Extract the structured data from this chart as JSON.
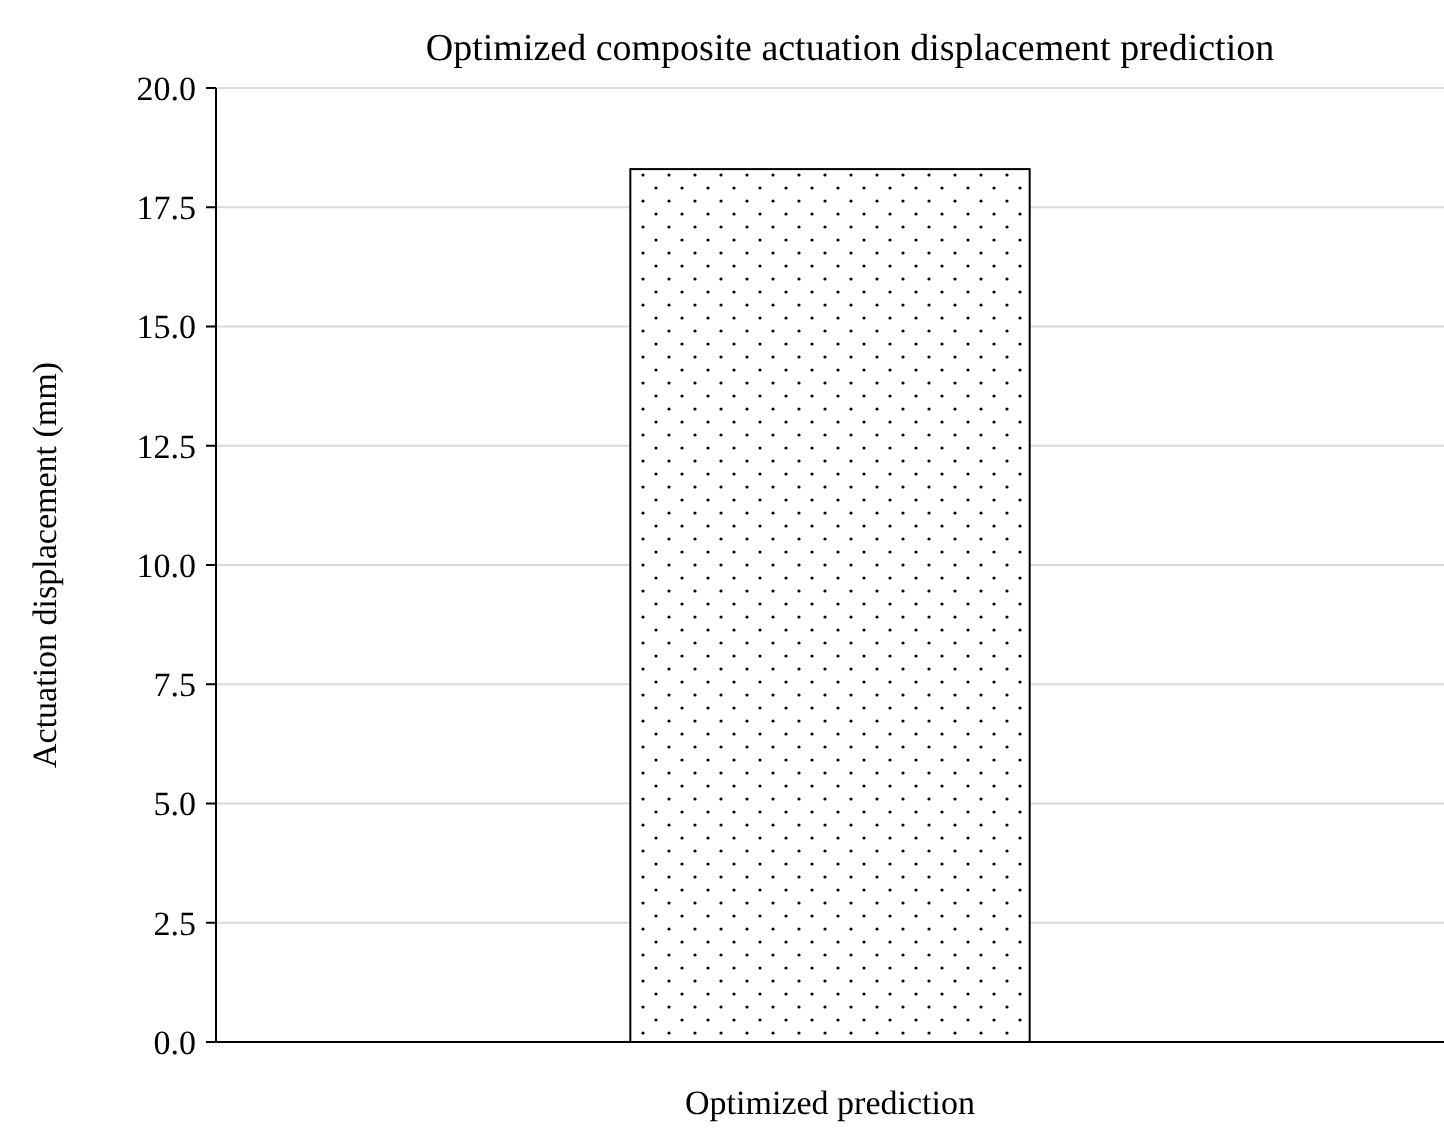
{
  "chart_data": {
    "type": "bar",
    "title": "Optimized composite actuation displacement prediction",
    "ylabel": "Actuation displacement (mm)",
    "categories": [
      "Optimized prediction"
    ],
    "values": [
      18.3
    ],
    "color": "#ffffff",
    "ylim": [
      0,
      20
    ],
    "yticks": [
      {
        "value": 0,
        "label": "0.0"
      },
      {
        "value": 2.5,
        "label": "2.5"
      },
      {
        "value": 5,
        "label": "5.0"
      },
      {
        "value": 7.5,
        "label": "7.5"
      },
      {
        "value": 10,
        "label": "10.0"
      },
      {
        "value": 12.5,
        "label": "12.5"
      },
      {
        "value": 15,
        "label": "15.0"
      },
      {
        "value": 17.5,
        "label": "17.5"
      },
      {
        "value": 20,
        "label": "20.0"
      }
    ],
    "grid": "y"
  }
}
